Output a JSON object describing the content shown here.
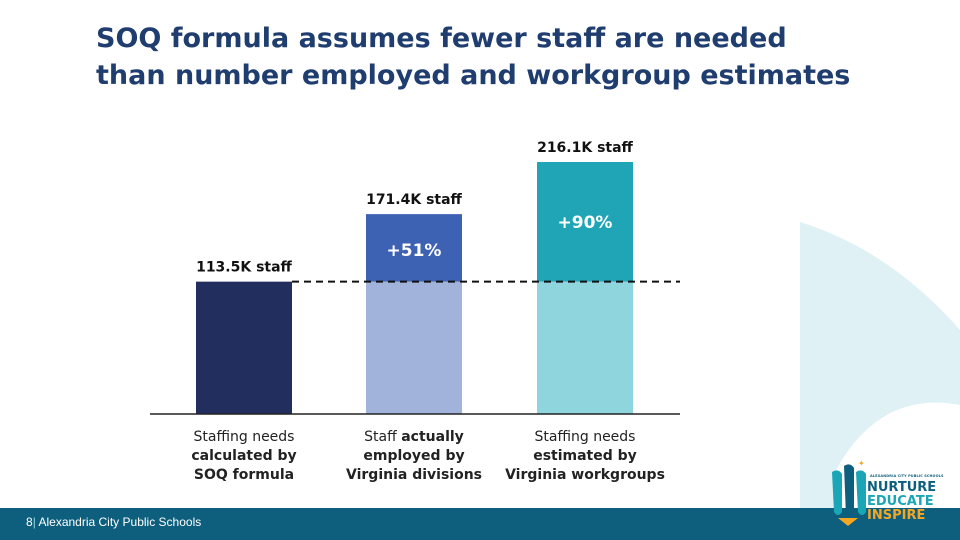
{
  "slide": {
    "title": "SOQ formula assumes fewer staff are needed than number employed and workgroup estimates",
    "footer_page": "8",
    "footer_separator": "|",
    "footer_org": "Alexandria City Public Schools"
  },
  "logo": {
    "small_text": "ALEXANDRIA CITY PUBLIC SCHOOLS",
    "words": [
      "NURTURE",
      "EDUCATE",
      "INSPIRE"
    ],
    "colors": [
      "#0e5f7e",
      "#1aa6b7",
      "#f5a623"
    ]
  },
  "chart_data": {
    "type": "bar",
    "title": "",
    "xlabel": "",
    "ylabel": "",
    "ylim": [
      0,
      240
    ],
    "grid": false,
    "legend": "none",
    "baseline_reference": 113.5,
    "categories": [
      [
        {
          "t": "Staffing needs",
          "b": false
        },
        {
          "t": "calculated by",
          "b": true
        },
        {
          "t": "SOQ formula",
          "b": true
        }
      ],
      [
        {
          "t": "Staff ",
          "b": false
        },
        {
          "t": "actually",
          "b": true
        },
        {
          "t": "employed by",
          "b": true
        },
        {
          "t": "Virginia divisions",
          "b": true
        }
      ],
      [
        {
          "t": "Staffing needs",
          "b": false
        },
        {
          "t": "estimated by",
          "b": true
        },
        {
          "t": "Virginia workgroups",
          "b": true
        }
      ]
    ],
    "bars": [
      {
        "value": 113.5,
        "label": "113.5K staff",
        "increase_label": "",
        "base_color": "#222f5e",
        "top_color": "#222f5e"
      },
      {
        "value": 171.4,
        "label": "171.4K staff",
        "increase_label": "+51%",
        "base_color": "#a1b3db",
        "top_color": "#3e62b3"
      },
      {
        "value": 216.1,
        "label": "216.1K staff",
        "increase_label": "+90%",
        "base_color": "#8fd5de",
        "top_color": "#1fa5b6"
      }
    ]
  }
}
